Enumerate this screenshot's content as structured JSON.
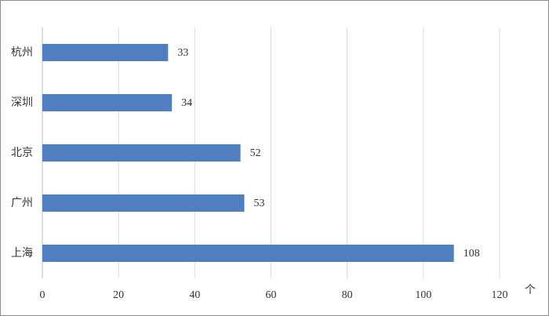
{
  "chart_data": {
    "type": "bar",
    "orientation": "horizontal",
    "categories": [
      "杭州",
      "深圳",
      "北京",
      "广州",
      "上海"
    ],
    "values": [
      33,
      34,
      52,
      53,
      108
    ],
    "color": "#4f7fbf",
    "xlim": [
      0,
      120
    ],
    "xticks": [
      0,
      20,
      40,
      60,
      80,
      100,
      120
    ],
    "grid": true,
    "x_unit": "个"
  }
}
